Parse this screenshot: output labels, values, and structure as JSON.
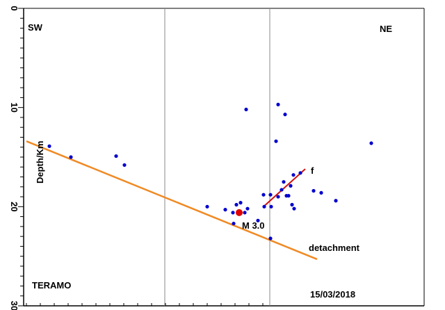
{
  "chart_data": {
    "type": "scatter",
    "ylabel": "Depth/Km",
    "ylim": [
      0,
      30
    ],
    "y_inverted": true,
    "y_ticks": [
      "0",
      "10",
      "20",
      "30"
    ],
    "xlabel": "",
    "grid": "vertical lines only",
    "labels": {
      "left": "SW",
      "right": "NE",
      "bottom_left": "TERAMO",
      "bottom_right": "15/03/2018",
      "main_event": "M 3.0",
      "fault": "f",
      "detachment": "detachment"
    },
    "colors": {
      "events": "#0000cc",
      "main_event": "#e00000",
      "detachment_line": "#f08a24",
      "fault_line": "#d01010",
      "grid": "#888888"
    },
    "series": [
      {
        "points": [
          {
            "x": 71,
            "y": 13.9
          },
          {
            "x": 102,
            "y": 15.0
          },
          {
            "x": 167,
            "y": 14.9
          },
          {
            "x": 179,
            "y": 15.8
          },
          {
            "x": 354,
            "y": 10.2
          },
          {
            "x": 397,
            "y": 13.4
          },
          {
            "x": 400,
            "y": 9.7
          },
          {
            "x": 410,
            "y": 10.7
          },
          {
            "x": 534,
            "y": 13.6
          },
          {
            "x": 298,
            "y": 20.0
          },
          {
            "x": 324,
            "y": 20.3
          },
          {
            "x": 335,
            "y": 20.6
          },
          {
            "x": 340,
            "y": 19.8
          },
          {
            "x": 346,
            "y": 19.6
          },
          {
            "x": 352,
            "y": 20.6
          },
          {
            "x": 356,
            "y": 20.2
          },
          {
            "x": 336,
            "y": 21.7
          },
          {
            "x": 371,
            "y": 21.4
          },
          {
            "x": 380,
            "y": 20.0
          },
          {
            "x": 379,
            "y": 18.8
          },
          {
            "x": 389,
            "y": 18.8
          },
          {
            "x": 390,
            "y": 20.0
          },
          {
            "x": 400,
            "y": 19.0
          },
          {
            "x": 405,
            "y": 18.3
          },
          {
            "x": 408,
            "y": 17.5
          },
          {
            "x": 412,
            "y": 18.9
          },
          {
            "x": 415,
            "y": 18.9
          },
          {
            "x": 418,
            "y": 17.9
          },
          {
            "x": 420,
            "y": 19.8
          },
          {
            "x": 422,
            "y": 16.8
          },
          {
            "x": 423,
            "y": 20.2
          },
          {
            "x": 432,
            "y": 16.6
          },
          {
            "x": 451,
            "y": 18.4
          },
          {
            "x": 462,
            "y": 18.6
          },
          {
            "x": 483,
            "y": 19.4
          },
          {
            "x": 389,
            "y": 23.2
          }
        ]
      },
      {
        "main_event": true,
        "points": [
          {
            "x": 344,
            "y": 20.6
          }
        ]
      }
    ],
    "lines": [
      {
        "role": "detachment",
        "from": {
          "x": 38,
          "y": 13.4
        },
        "to": {
          "x": 456,
          "y": 25.3
        }
      },
      {
        "role": "fault",
        "from": {
          "x": 379,
          "y": 20.0
        },
        "to": {
          "x": 439,
          "y": 16.2
        }
      }
    ],
    "x_gridlines": [
      237,
      388
    ]
  }
}
